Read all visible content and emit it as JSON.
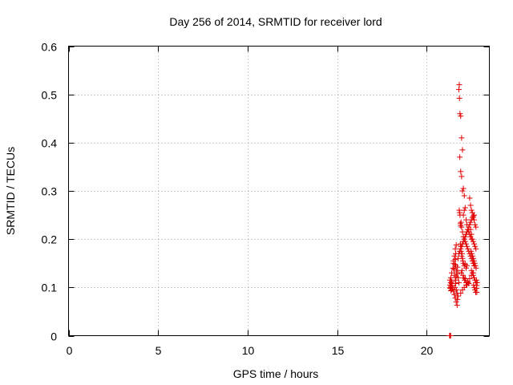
{
  "chart_data": {
    "type": "scatter",
    "title": "Day 256 of 2014, SRMTID for receiver lord",
    "xlabel": "GPS time / hours",
    "ylabel": "SRMTID / TECUs",
    "xlim": [
      0,
      23.5
    ],
    "ylim": [
      0,
      0.6
    ],
    "xticks": [
      0,
      5,
      10,
      15,
      20
    ],
    "xtick_labels": [
      "0",
      "5",
      "10",
      "15",
      "20"
    ],
    "yticks": [
      0,
      0.1,
      0.2,
      0.3,
      0.4,
      0.5,
      0.6
    ],
    "ytick_labels": [
      "0",
      "0.1",
      "0.2",
      "0.3",
      "0.4",
      "0.5",
      "0.6"
    ],
    "grid": true,
    "marker": "plus",
    "color": "#e00000",
    "series": [
      {
        "name": "SRMTID",
        "x": [
          21.3,
          21.32,
          21.34,
          21.36,
          21.38,
          21.4,
          21.3,
          21.33,
          21.36,
          21.4,
          21.42,
          21.45,
          21.35,
          21.4,
          21.47,
          21.5,
          21.52,
          21.55,
          21.5,
          21.55,
          21.58,
          21.6,
          21.62,
          21.6,
          21.65,
          21.62,
          21.68,
          21.7,
          21.5,
          21.55,
          21.6,
          21.65,
          21.7,
          21.58,
          21.62,
          21.66,
          21.7,
          21.72,
          21.75,
          21.6,
          21.64,
          21.68,
          21.72,
          21.76,
          21.8,
          21.82,
          21.8,
          21.83,
          21.86,
          21.9,
          21.95,
          22.0,
          21.85,
          21.9,
          21.95,
          22.0,
          22.05,
          22.1,
          21.82,
          21.84,
          21.86,
          21.88,
          21.9,
          21.92,
          21.95,
          22.0,
          22.05,
          22.1,
          22.15,
          22.2,
          21.88,
          21.9,
          21.92,
          21.95,
          21.98,
          22.0,
          22.02,
          22.05,
          22.1,
          22.15,
          22.2,
          22.25,
          21.93,
          21.97,
          22.03,
          22.08,
          22.12,
          22.15,
          22.2,
          22.25,
          22.3,
          22.35,
          22.05,
          22.1,
          22.15,
          22.2,
          22.25,
          22.3,
          22.35,
          22.4,
          22.45,
          22.5,
          22.2,
          22.25,
          22.3,
          22.35,
          22.4,
          22.45,
          22.5,
          22.55,
          22.6,
          22.65,
          22.4,
          22.45,
          22.5,
          22.55,
          22.6,
          22.65,
          22.7,
          22.75,
          22.45,
          22.5,
          22.55,
          22.6,
          22.65,
          22.7,
          22.75,
          22.48,
          22.52,
          22.56,
          22.6,
          22.64,
          22.68,
          22.72,
          22.76,
          22.5,
          22.55,
          22.6,
          22.65,
          22.7,
          22.75,
          22.62,
          22.66,
          22.7,
          22.74,
          22.78,
          22.8,
          22.82,
          22.78,
          22.8,
          21.9,
          22.0,
          22.1,
          22.2,
          22.3,
          22.4,
          22.5,
          22.6,
          21.75,
          21.8,
          21.85,
          21.9,
          21.95,
          22.0,
          22.05,
          22.1,
          22.15,
          22.2,
          22.25,
          22.3,
          22.35,
          22.4,
          22.45,
          22.5,
          22.55,
          22.6,
          22.65,
          21.28,
          21.3,
          21.32,
          21.34
        ],
        "y": [
          0.105,
          0.098,
          0.11,
          0.102,
          0.095,
          0.108,
          0.115,
          0.1,
          0.093,
          0.112,
          0.104,
          0.097,
          0.12,
          0.13,
          0.14,
          0.15,
          0.138,
          0.125,
          0.155,
          0.165,
          0.148,
          0.158,
          0.17,
          0.18,
          0.188,
          0.145,
          0.135,
          0.128,
          0.092,
          0.085,
          0.078,
          0.07,
          0.063,
          0.1,
          0.108,
          0.095,
          0.088,
          0.075,
          0.082,
          0.115,
          0.122,
          0.132,
          0.142,
          0.12,
          0.11,
          0.52,
          0.51,
          0.492,
          0.46,
          0.455,
          0.41,
          0.385,
          0.37,
          0.34,
          0.33,
          0.3,
          0.305,
          0.29,
          0.26,
          0.255,
          0.25,
          0.232,
          0.228,
          0.235,
          0.225,
          0.215,
          0.205,
          0.2,
          0.195,
          0.21,
          0.19,
          0.185,
          0.175,
          0.165,
          0.17,
          0.16,
          0.155,
          0.15,
          0.145,
          0.148,
          0.14,
          0.145,
          0.13,
          0.135,
          0.125,
          0.12,
          0.115,
          0.118,
          0.11,
          0.105,
          0.112,
          0.108,
          0.25,
          0.26,
          0.265,
          0.24,
          0.23,
          0.22,
          0.215,
          0.21,
          0.205,
          0.2,
          0.19,
          0.185,
          0.18,
          0.175,
          0.17,
          0.165,
          0.16,
          0.155,
          0.15,
          0.145,
          0.285,
          0.27,
          0.26,
          0.255,
          0.245,
          0.24,
          0.23,
          0.225,
          0.22,
          0.21,
          0.2,
          0.195,
          0.19,
          0.185,
          0.18,
          0.175,
          0.17,
          0.165,
          0.16,
          0.155,
          0.15,
          0.145,
          0.14,
          0.135,
          0.13,
          0.125,
          0.12,
          0.115,
          0.11,
          0.105,
          0.1,
          0.095,
          0.09,
          0.098,
          0.104,
          0.11,
          0.115,
          0.09,
          0.088,
          0.095,
          0.1,
          0.105,
          0.11,
          0.118,
          0.125,
          0.13,
          0.16,
          0.17,
          0.175,
          0.18,
          0.185,
          0.19,
          0.195,
          0.2,
          0.205,
          0.21,
          0.215,
          0.22,
          0.225,
          0.23,
          0.235,
          0.24,
          0.245,
          0.248,
          0.25,
          0.0,
          0.0,
          0.0,
          0.0
        ]
      }
    ]
  }
}
